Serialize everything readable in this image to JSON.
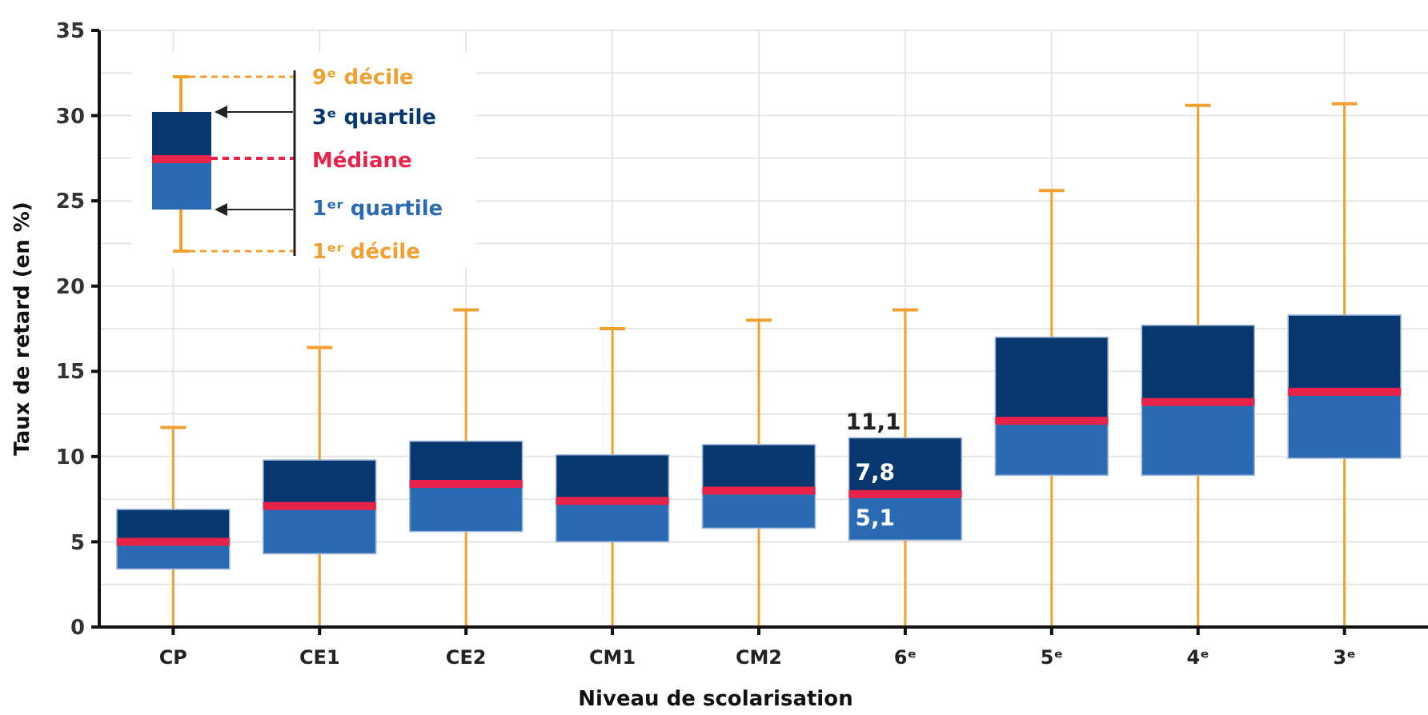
{
  "chart_data": {
    "type": "box",
    "xlabel": "Niveau de scolarisation",
    "ylabel": "Taux de retard (en %)",
    "categories": [
      "CP",
      "CE1",
      "CE2",
      "CM1",
      "CM2",
      "6ᵉ",
      "5ᵉ",
      "4ᵉ",
      "3ᵉ"
    ],
    "boxes": [
      {
        "low": 0,
        "q1": 3.4,
        "median": 5.0,
        "q3": 6.9,
        "high": 11.7
      },
      {
        "low": 0,
        "q1": 4.3,
        "median": 7.1,
        "q3": 9.8,
        "high": 16.4
      },
      {
        "low": 0,
        "q1": 5.6,
        "median": 8.4,
        "q3": 10.9,
        "high": 18.6
      },
      {
        "low": 0,
        "q1": 5.0,
        "median": 7.4,
        "q3": 10.1,
        "high": 17.5
      },
      {
        "low": 0,
        "q1": 5.8,
        "median": 8.0,
        "q3": 10.7,
        "high": 18.0
      },
      {
        "low": 0,
        "q1": 5.1,
        "median": 7.8,
        "q3": 11.1,
        "high": 18.6
      },
      {
        "low": 0,
        "q1": 8.9,
        "median": 12.1,
        "q3": 17.0,
        "high": 25.6
      },
      {
        "low": 0,
        "q1": 8.9,
        "median": 13.2,
        "q3": 17.7,
        "high": 30.6
      },
      {
        "low": 0,
        "q1": 9.9,
        "median": 13.8,
        "q3": 18.3,
        "high": 30.7
      }
    ],
    "ylim": [
      0,
      35
    ],
    "yticks": [
      0,
      {
        "value": 2.5,
        "label": null
      },
      5,
      {
        "value": 7.5,
        "label": null
      },
      10,
      {
        "value": 12.5,
        "label": null
      },
      15,
      {
        "value": 17.5,
        "label": null
      },
      20,
      {
        "value": 22.5,
        "label": null
      },
      25,
      {
        "value": 27.5,
        "label": null
      },
      30,
      {
        "value": 32.5,
        "label": null
      },
      35
    ],
    "grid": true,
    "annotations": [
      "9ᵉ décile",
      "3ᵉ quartile",
      "Médiane",
      "1ᵉʳ quartile",
      "1ᵉʳ décile",
      {
        "text": "11,1",
        "x": "6ᵉ",
        "y": 11.1
      },
      {
        "text": "7,8",
        "x": "6ᵉ",
        "y": 7.8
      },
      {
        "text": "5,1",
        "x": "6ᵉ",
        "y": 5.1
      }
    ]
  }
}
